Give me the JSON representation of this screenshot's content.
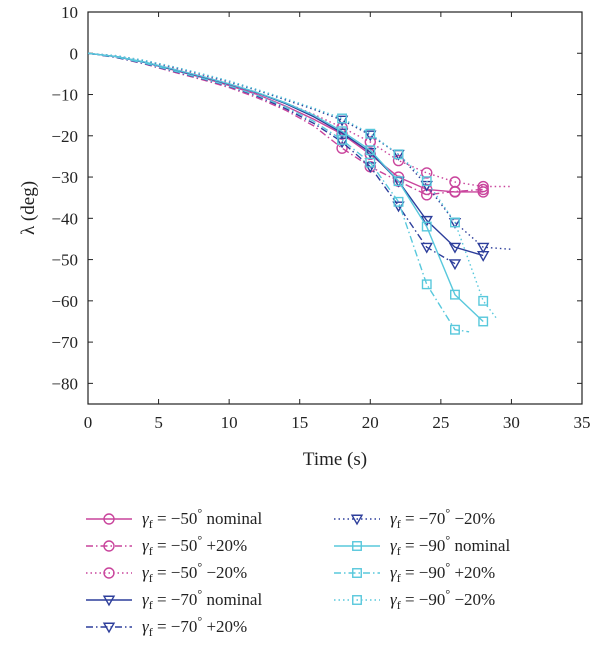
{
  "chart_data": {
    "type": "line",
    "xlabel": "Time (s)",
    "ylabel": "λ (deg)",
    "xlim": [
      0,
      35
    ],
    "ylim": [
      -85,
      10
    ],
    "xticks": [
      0,
      5,
      10,
      15,
      20,
      25,
      30,
      35
    ],
    "yticks": [
      10,
      0,
      -10,
      -20,
      -30,
      -40,
      -50,
      -60,
      -70,
      -80
    ],
    "grid": false,
    "legend_position": "bottom",
    "series": [
      {
        "name": "−50° nominal",
        "gamma": "−50",
        "suffix": "nominal",
        "color": "#c9449c",
        "style": "solid",
        "marker": "circle",
        "x": [
          0,
          2,
          4,
          6,
          8,
          10,
          12,
          14,
          16,
          18,
          20,
          22,
          24,
          26,
          28
        ],
        "y": [
          0,
          -0.8,
          -2.2,
          -4,
          -5.8,
          -7.8,
          -10,
          -12.8,
          -16,
          -19.6,
          -24.5,
          -30,
          -33,
          -33.6,
          -33.6
        ]
      },
      {
        "name": "−50° +20%",
        "gamma": "−50",
        "suffix": "+20%",
        "color": "#c9449c",
        "style": "dashdot",
        "marker": "circle",
        "x": [
          0,
          2,
          4,
          6,
          8,
          10,
          12,
          14,
          16,
          18,
          20,
          22,
          24,
          26,
          28
        ],
        "y": [
          0,
          -1,
          -2.6,
          -4.5,
          -6.3,
          -8.3,
          -10.8,
          -13.8,
          -17.6,
          -23,
          -27.5,
          -31,
          -34.3,
          -33.5,
          -33
        ]
      },
      {
        "name": "−50° −20%",
        "gamma": "−50",
        "suffix": "−20%",
        "color": "#c9449c",
        "style": "dotted",
        "marker": "circle",
        "x": [
          0,
          2,
          4,
          6,
          8,
          10,
          12,
          14,
          16,
          18,
          20,
          22,
          24,
          26,
          28,
          30
        ],
        "y": [
          0,
          -0.7,
          -1.9,
          -3.5,
          -5.3,
          -7.3,
          -9.6,
          -12,
          -14.8,
          -18,
          -21.5,
          -26,
          -29,
          -31.2,
          -32.3,
          -32.3
        ]
      },
      {
        "name": "−70° nominal",
        "gamma": "−70",
        "suffix": "nominal",
        "color": "#2d3e9b",
        "style": "solid",
        "marker": "triangle",
        "x": [
          0,
          2,
          4,
          6,
          8,
          10,
          12,
          14,
          16,
          18,
          20,
          22,
          24,
          26,
          28
        ],
        "y": [
          0,
          -0.8,
          -2.2,
          -3.9,
          -5.6,
          -7.5,
          -9.6,
          -12.2,
          -15.4,
          -19.3,
          -24,
          -31,
          -40.5,
          -47,
          -49
        ]
      },
      {
        "name": "−70° +20%",
        "gamma": "−70",
        "suffix": "+20%",
        "color": "#2d3e9b",
        "style": "dashdot",
        "marker": "triangle",
        "x": [
          0,
          2,
          4,
          6,
          8,
          10,
          12,
          14,
          16,
          18,
          20,
          22,
          24,
          26
        ],
        "y": [
          0,
          -1,
          -2.5,
          -4.3,
          -6.1,
          -8,
          -10.4,
          -13.4,
          -17,
          -21.5,
          -27.5,
          -37,
          -47,
          -51
        ]
      },
      {
        "name": "−70° −20%",
        "gamma": "−70",
        "suffix": "−20%",
        "color": "#2d3e9b",
        "style": "dotted",
        "marker": "triangle",
        "x": [
          0,
          2,
          4,
          6,
          8,
          10,
          12,
          14,
          16,
          18,
          20,
          22,
          24,
          26,
          28,
          30
        ],
        "y": [
          0,
          -0.6,
          -1.8,
          -3.3,
          -5,
          -6.9,
          -9,
          -11.3,
          -13.6,
          -16.2,
          -19.8,
          -24.5,
          -32,
          -41,
          -47,
          -47.5
        ]
      },
      {
        "name": "−90° nominal",
        "gamma": "−90",
        "suffix": "nominal",
        "color": "#58c8dc",
        "style": "solid",
        "marker": "square",
        "x": [
          0,
          2,
          4,
          6,
          8,
          10,
          12,
          14,
          16,
          18,
          20,
          22,
          24,
          26,
          28
        ],
        "y": [
          0,
          -0.8,
          -2.1,
          -3.8,
          -5.5,
          -7.4,
          -9.5,
          -12,
          -15,
          -18.9,
          -23.5,
          -31,
          -42,
          -58.5,
          -65
        ]
      },
      {
        "name": "−90° +20%",
        "gamma": "−90",
        "suffix": "+20%",
        "color": "#58c8dc",
        "style": "dashdot",
        "marker": "square",
        "x": [
          0,
          2,
          4,
          6,
          8,
          10,
          12,
          14,
          16,
          18,
          20,
          22,
          24,
          26,
          27
        ],
        "y": [
          0,
          -0.9,
          -2.4,
          -4.2,
          -6,
          -7.9,
          -10.2,
          -13,
          -16.5,
          -21,
          -26.5,
          -36,
          -56,
          -67,
          -67.5
        ]
      },
      {
        "name": "−90° −20%",
        "gamma": "−90",
        "suffix": "−20%",
        "color": "#58c8dc",
        "style": "dotted",
        "marker": "square",
        "x": [
          0,
          2,
          4,
          6,
          8,
          10,
          12,
          14,
          16,
          18,
          20,
          22,
          24,
          26,
          28,
          29
        ],
        "y": [
          0,
          -0.6,
          -1.7,
          -3.2,
          -4.9,
          -6.7,
          -8.8,
          -11,
          -13.3,
          -15.8,
          -19.5,
          -24.5,
          -31,
          -41,
          -60,
          -64.5
        ]
      }
    ]
  },
  "legend": {
    "col1": [
      0,
      1,
      2,
      3,
      4
    ],
    "col2": [
      5,
      6,
      7,
      8
    ]
  }
}
